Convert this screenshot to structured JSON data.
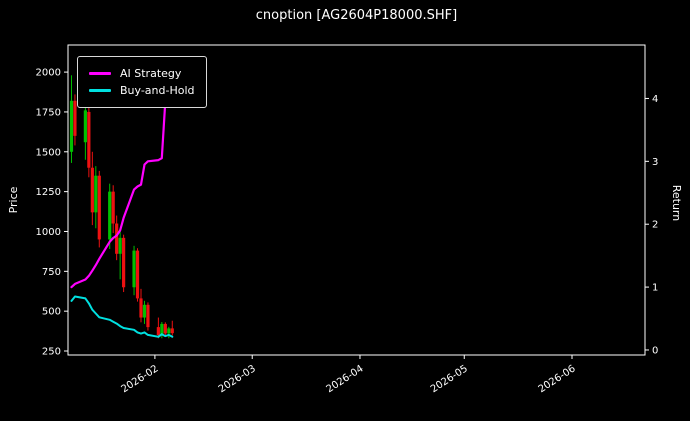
{
  "chart_data": {
    "type": "candlestick",
    "title": "cnoption [AG2604P18000.SHF]",
    "ylabel_left": "Price",
    "ylabel_right": "Return",
    "background_color": "#000000",
    "text_color": "#ffffff",
    "frame_color": "#ffffff",
    "up_color": "#00c000",
    "down_color": "#ee1111",
    "grid": false,
    "legend_position": "upper left",
    "price_ticks": [
      250,
      500,
      750,
      1000,
      1250,
      1500,
      1750,
      2000
    ],
    "return_ticks": [
      0,
      1,
      2,
      3,
      4
    ],
    "price_range": [
      225,
      2170
    ],
    "return_range": [
      -0.08,
      4.85
    ],
    "x_epoch": "2026-01-01",
    "x_min": "2026-01-07",
    "x_max": "2026-06-22",
    "x_ticks": [
      {
        "label": "2026-02",
        "date": "2026-02-01"
      },
      {
        "label": "2026-03",
        "date": "2026-03-01"
      },
      {
        "label": "2026-04",
        "date": "2026-04-01"
      },
      {
        "label": "2026-05",
        "date": "2026-05-01"
      },
      {
        "label": "2026-06",
        "date": "2026-06-01"
      }
    ],
    "dates": [
      "2026-01-08",
      "2026-01-09",
      "2026-01-12",
      "2026-01-13",
      "2026-01-14",
      "2026-01-15",
      "2026-01-16",
      "2026-01-19",
      "2026-01-20",
      "2026-01-21",
      "2026-01-22",
      "2026-01-23",
      "2026-01-26",
      "2026-01-27",
      "2026-01-28",
      "2026-01-29",
      "2026-01-30",
      "2026-02-02",
      "2026-02-03",
      "2026-02-04",
      "2026-02-05",
      "2026-02-06"
    ],
    "ohlc": [
      [
        1500,
        1980,
        1430,
        1820
      ],
      [
        1820,
        1860,
        1540,
        1600
      ],
      [
        1560,
        1800,
        1450,
        1760
      ],
      [
        1750,
        1780,
        1340,
        1400
      ],
      [
        1400,
        1500,
        1040,
        1120
      ],
      [
        1120,
        1410,
        1020,
        1350
      ],
      [
        1350,
        1380,
        900,
        950
      ],
      [
        950,
        1300,
        890,
        1250
      ],
      [
        1250,
        1290,
        990,
        1050
      ],
      [
        1050,
        1100,
        820,
        860
      ],
      [
        860,
        1000,
        700,
        960
      ],
      [
        960,
        980,
        620,
        650
      ],
      [
        650,
        910,
        600,
        880
      ],
      [
        880,
        895,
        560,
        580
      ],
      [
        580,
        640,
        430,
        460
      ],
      [
        460,
        565,
        420,
        540
      ],
      [
        540,
        555,
        378,
        400
      ],
      [
        400,
        460,
        330,
        350
      ],
      [
        350,
        432,
        330,
        420
      ],
      [
        420,
        430,
        338,
        360
      ],
      [
        360,
        402,
        330,
        392
      ],
      [
        392,
        440,
        348,
        362
      ]
    ],
    "series": [
      {
        "name": "AI Strategy",
        "color": "#ff00ff",
        "axis": "return",
        "values": [
          1.0,
          1.05,
          1.12,
          1.18,
          1.26,
          1.35,
          1.45,
          1.72,
          1.78,
          1.82,
          1.9,
          2.1,
          2.55,
          2.6,
          2.63,
          2.95,
          3.0,
          3.02,
          3.05,
          3.95,
          4.0,
          4.18
        ]
      },
      {
        "name": "Buy-and-Hold",
        "color": "#00e0e0",
        "axis": "return",
        "values": [
          0.78,
          0.85,
          0.82,
          0.74,
          0.64,
          0.58,
          0.52,
          0.48,
          0.45,
          0.42,
          0.38,
          0.35,
          0.32,
          0.28,
          0.26,
          0.28,
          0.24,
          0.21,
          0.25,
          0.22,
          0.24,
          0.21
        ]
      }
    ]
  }
}
